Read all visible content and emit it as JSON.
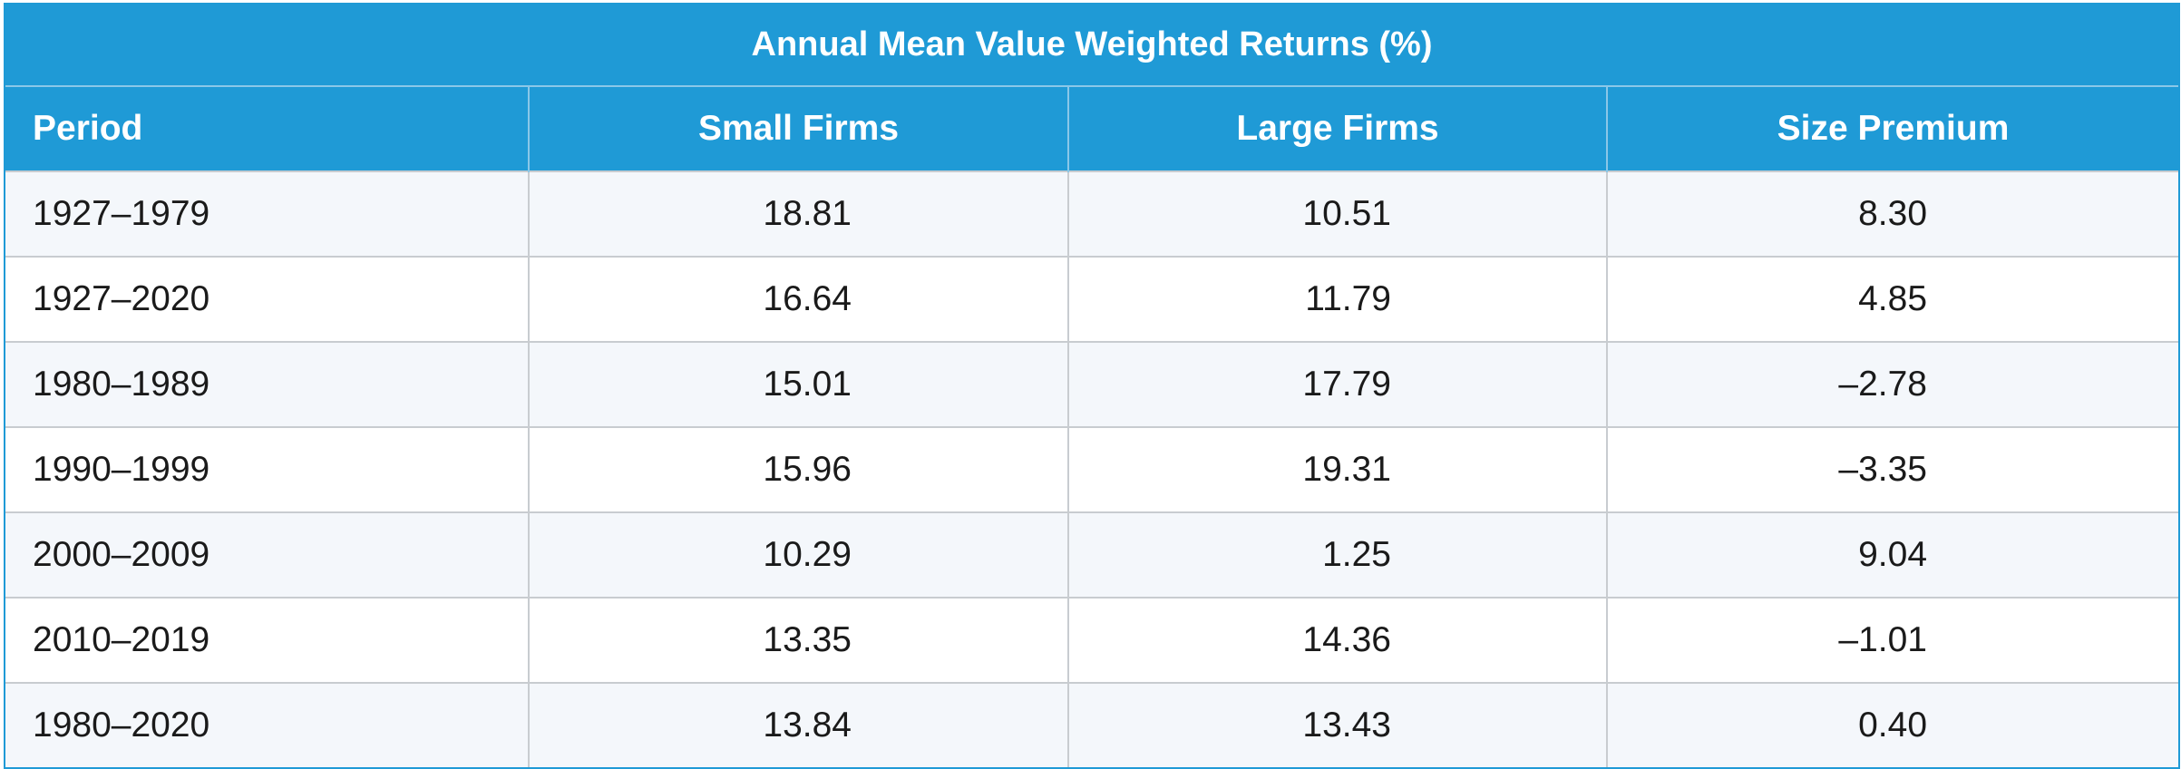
{
  "chart_data": {
    "type": "table",
    "title": "Annual Mean Value Weighted Returns (%)",
    "columns": [
      "Period",
      "Small Firms",
      "Large Firms",
      "Size Premium"
    ],
    "rows": [
      {
        "period": "1927–1979",
        "small": "18.81",
        "large": "10.51",
        "premium": "8.30"
      },
      {
        "period": "1927–2020",
        "small": "16.64",
        "large": "11.79",
        "premium": "4.85"
      },
      {
        "period": "1980–1989",
        "small": "15.01",
        "large": "17.79",
        "premium": "–2.78"
      },
      {
        "period": "1990–1999",
        "small": "15.96",
        "large": "19.31",
        "premium": "–3.35"
      },
      {
        "period": "2000–2009",
        "small": "10.29",
        "large": "1.25",
        "premium": "9.04"
      },
      {
        "period": "2010–2019",
        "small": "13.35",
        "large": "14.36",
        "premium": "–1.01"
      },
      {
        "period": "1980–2020",
        "small": "13.84",
        "large": "13.43",
        "premium": "0.40"
      }
    ]
  },
  "colors": {
    "header_bg": "#1f9ad6",
    "header_text": "#ffffff",
    "row_alt_bg": "#f4f7fb",
    "grid": "#c8ccd0"
  }
}
